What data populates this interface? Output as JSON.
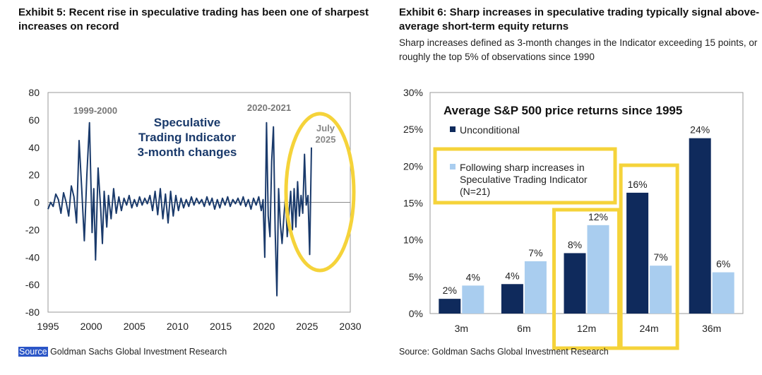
{
  "left": {
    "title": "Exhibit 5: Recent rise in speculative trading has been one of sharpest increases on record",
    "title_line1": "Exhibit 5: Recent rise in speculative trading has been one of sharpest",
    "title_line2": "increases on record",
    "source_prefix": "Source",
    "source_rest": " Goldman Sachs Global Investment Research"
  },
  "right": {
    "title_line1": "Exhibit 6: Sharp increases in speculative trading typically signal above-",
    "title_line2": "average short-term equity returns",
    "subtitle_line1": "Sharp increases defined as 3-month changes in the Indicator exceeding 15 points, or",
    "subtitle_line2": "roughly the top 5% of observations since 1990",
    "source": "Source: Goldman Sachs Global Investment Research"
  },
  "colors": {
    "line": "#1a3a6b",
    "dark_bar": "#0f2a5c",
    "light_bar": "#a9cdef",
    "highlight": "#f5d33a",
    "title_blue": "#1a3a6b"
  },
  "chart_data": [
    {
      "type": "line",
      "title": "",
      "annotation_lines": [
        "Speculative",
        "Trading Indicator",
        "3-month changes"
      ],
      "period_labels": [
        "1999-2000",
        "2020-2021"
      ],
      "callout_lines": [
        "July",
        "2025"
      ],
      "xlim": [
        1995,
        2030
      ],
      "ylim": [
        -80,
        80
      ],
      "x_ticks": [
        1995,
        2000,
        2005,
        2010,
        2015,
        2020,
        2025,
        2030
      ],
      "y_ticks": [
        80,
        60,
        40,
        20,
        0,
        -20,
        -40,
        -60,
        -80
      ],
      "series": [
        {
          "x": [
            1995.0,
            1995.3,
            1995.6,
            1995.9,
            1996.2,
            1996.5,
            1996.8,
            1997.1,
            1997.4,
            1997.7,
            1998.0,
            1998.3,
            1998.6,
            1998.9,
            1999.2,
            1999.5,
            1999.8,
            2000.1,
            2000.3,
            2000.5,
            2000.8,
            2001.1,
            2001.3,
            2001.5,
            2001.8,
            2002.0,
            2002.3,
            2002.6,
            2002.9,
            2003.2,
            2003.5,
            2003.8,
            2004.1,
            2004.4,
            2004.7,
            2005.0,
            2005.3,
            2005.6,
            2005.9,
            2006.2,
            2006.5,
            2006.8,
            2007.1,
            2007.4,
            2007.7,
            2008.0,
            2008.3,
            2008.6,
            2008.9,
            2009.2,
            2009.5,
            2009.8,
            2010.1,
            2010.4,
            2010.7,
            2011.0,
            2011.3,
            2011.6,
            2011.9,
            2012.2,
            2012.5,
            2012.8,
            2013.1,
            2013.4,
            2013.7,
            2014.0,
            2014.3,
            2014.6,
            2014.9,
            2015.2,
            2015.5,
            2015.8,
            2016.1,
            2016.4,
            2016.7,
            2017.0,
            2017.3,
            2017.6,
            2017.9,
            2018.2,
            2018.5,
            2018.8,
            2019.1,
            2019.4,
            2019.7,
            2019.9,
            2020.1,
            2020.3,
            2020.5,
            2020.7,
            2020.9,
            2021.1,
            2021.3,
            2021.5,
            2021.7,
            2021.9,
            2022.1,
            2022.3,
            2022.5,
            2022.7,
            2022.9,
            2023.1,
            2023.3,
            2023.5,
            2023.7,
            2023.9,
            2024.1,
            2024.3,
            2024.5,
            2024.7,
            2024.9,
            2025.1,
            2025.3,
            2025.5
          ],
          "y": [
            -5,
            0,
            -3,
            6,
            2,
            -8,
            7,
            0,
            -10,
            12,
            4,
            -15,
            45,
            10,
            -28,
            20,
            58,
            -22,
            10,
            -42,
            25,
            -5,
            -30,
            8,
            -18,
            5,
            -12,
            10,
            -8,
            4,
            -6,
            3,
            -2,
            5,
            -4,
            2,
            -3,
            4,
            -2,
            3,
            -1,
            5,
            -6,
            8,
            -9,
            10,
            -12,
            6,
            -15,
            8,
            -10,
            5,
            -6,
            3,
            -4,
            2,
            -3,
            4,
            -2,
            3,
            -1,
            2,
            -3,
            4,
            -2,
            3,
            -5,
            2,
            -4,
            3,
            -2,
            4,
            -3,
            2,
            -1,
            3,
            -2,
            4,
            -3,
            2,
            -5,
            3,
            -2,
            4,
            -6,
            2,
            -40,
            58,
            -10,
            -25,
            30,
            55,
            -20,
            -68,
            10,
            -15,
            -30,
            -12,
            5,
            -25,
            -8,
            8,
            -20,
            10,
            -18,
            15,
            -10,
            5,
            -8,
            35,
            -2,
            5,
            -38,
            40
          ]
        }
      ]
    },
    {
      "type": "bar",
      "title": "Average S&P 500 price returns since 1995",
      "categories": [
        "3m",
        "6m",
        "12m",
        "24m",
        "36m"
      ],
      "ylim": [
        0,
        30
      ],
      "y_ticks": [
        0,
        5,
        10,
        15,
        20,
        25,
        30
      ],
      "y_tick_labels": [
        "0%",
        "5%",
        "10%",
        "15%",
        "20%",
        "25%",
        "30%"
      ],
      "legend_position": "top-left",
      "series": [
        {
          "name": "Unconditional",
          "values": [
            2.0,
            4.0,
            8.2,
            16.4,
            23.8
          ],
          "labels": [
            "2%",
            "4%",
            "8%",
            "16%",
            "24%"
          ]
        },
        {
          "name": "Following sharp increases in Speculative Trading Indicator (N=21)",
          "name_lines": [
            "Following sharp increases in",
            "Speculative Trading Indicator",
            "(N=21)"
          ],
          "values": [
            3.8,
            7.1,
            12.0,
            6.5,
            5.6
          ],
          "labels": [
            "4%",
            "7%",
            "12%",
            "7%",
            "6%"
          ]
        }
      ]
    }
  ]
}
